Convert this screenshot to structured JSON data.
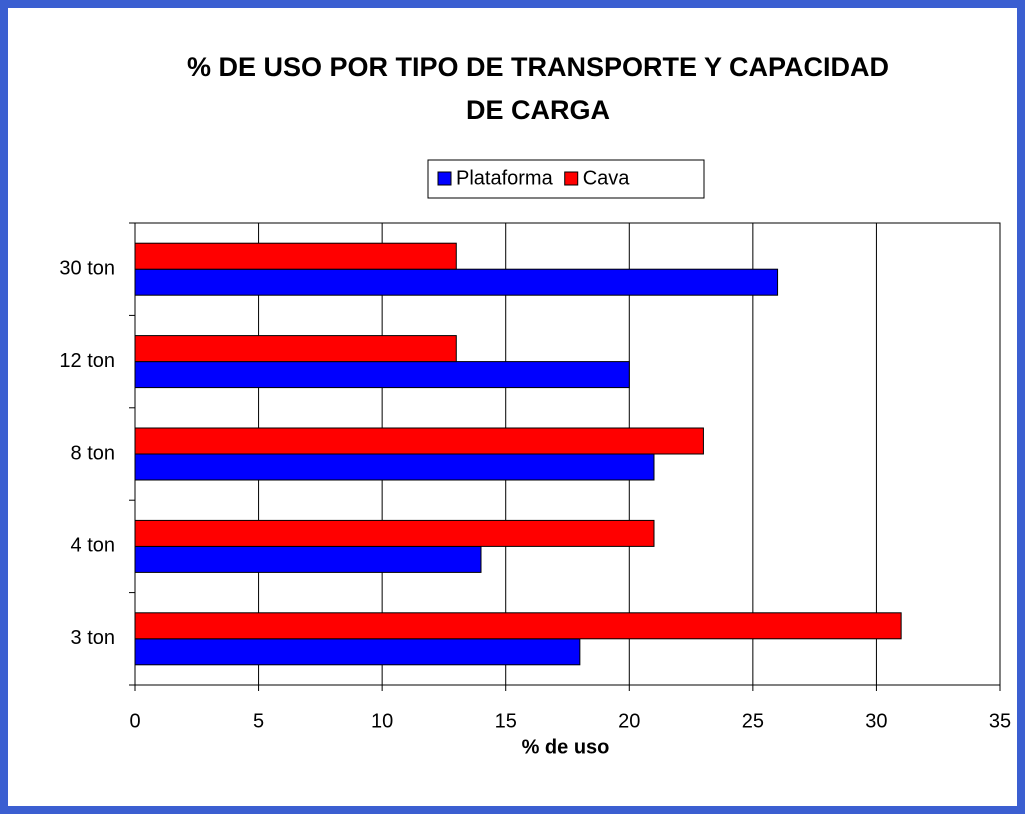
{
  "chart_data": {
    "type": "barh",
    "title": "% DE USO POR TIPO DE TRANSPORTE Y CAPACIDAD DE CARGA",
    "xlabel": "% de uso",
    "categories": [
      "3 ton",
      "4 ton",
      "8 ton",
      "12 ton",
      "30 ton"
    ],
    "series": [
      {
        "name": "Plataforma",
        "color": "#0000ff",
        "values": [
          18,
          14,
          21,
          20,
          26
        ]
      },
      {
        "name": "Cava",
        "color": "#ff0000",
        "values": [
          31,
          21,
          23,
          13,
          13
        ]
      }
    ],
    "xlim": [
      0,
      35
    ],
    "xticks": [
      0,
      5,
      10,
      15,
      20,
      25,
      30,
      35
    ],
    "grid": true,
    "legend": "top"
  }
}
